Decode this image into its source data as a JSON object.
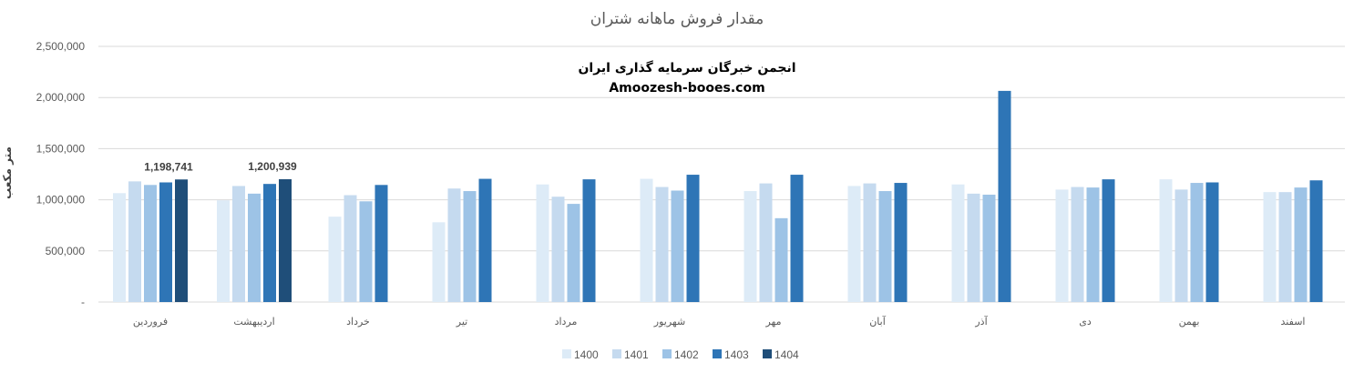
{
  "chart_data": {
    "type": "bar",
    "title": "مقدار فروش ماهانه شتران",
    "watermark": {
      "line1": "انجمن خبرگان سرمایه گذاری ایران",
      "line2": "Amoozesh-booes.com"
    },
    "xlabel": "",
    "ylabel": "متر مکعب",
    "ylim": [
      0,
      2500000
    ],
    "yticks": [
      0,
      500000,
      1000000,
      1500000,
      2000000,
      2500000
    ],
    "ytick_labels": [
      "-",
      "500,000",
      "1,000,000",
      "1,500,000",
      "2,000,000",
      "2,500,000"
    ],
    "grid": true,
    "legend_position": "bottom",
    "categories": [
      "فروردین",
      "اردیبهشت",
      "خرداد",
      "تیر",
      "مرداد",
      "شهریور",
      "مهر",
      "آبان",
      "آذر",
      "دی",
      "بهمن",
      "اسفند"
    ],
    "series": [
      {
        "name": "1400",
        "color": "#DDEBF7",
        "values": [
          1065000,
          995000,
          835000,
          780000,
          1150000,
          1205000,
          1085000,
          1135000,
          1150000,
          1100000,
          1200000,
          1075000
        ]
      },
      {
        "name": "1401",
        "color": "#C5DAEF",
        "values": [
          1180000,
          1135000,
          1045000,
          1110000,
          1030000,
          1125000,
          1160000,
          1160000,
          1060000,
          1125000,
          1100000,
          1075000
        ]
      },
      {
        "name": "1402",
        "color": "#9DC3E6",
        "values": [
          1145000,
          1060000,
          985000,
          1085000,
          960000,
          1090000,
          820000,
          1085000,
          1050000,
          1120000,
          1165000,
          1120000
        ]
      },
      {
        "name": "1403",
        "color": "#2E75B6",
        "values": [
          1170000,
          1155000,
          1145000,
          1205000,
          1200000,
          1245000,
          1245000,
          1165000,
          2065000,
          1200000,
          1170000,
          1190000
        ]
      },
      {
        "name": "1404",
        "color": "#1F4E79",
        "values": [
          1198741,
          1200939,
          null,
          null,
          null,
          null,
          null,
          null,
          null,
          null,
          null,
          null
        ]
      }
    ],
    "data_labels": [
      {
        "series": "1404",
        "category": "فروردین",
        "text": "1,198,741"
      },
      {
        "series": "1404",
        "category": "اردیبهشت",
        "text": "1,200,939"
      }
    ]
  }
}
